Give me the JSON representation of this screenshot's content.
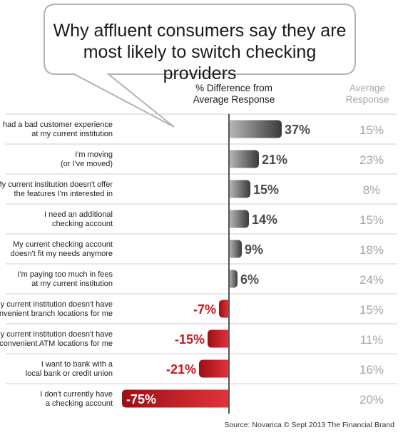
{
  "title": [
    "Why affluent consumers say they are",
    "most likely to switch checking providers"
  ],
  "column_headers": {
    "difference": [
      "% Difference from",
      "Average Response"
    ],
    "average": [
      "Average",
      "Response"
    ]
  },
  "source": "Source: Novarica © Sept 2013 The Financial Brand",
  "colors": {
    "positive": "#5f5f5f",
    "negative": "#c8181f",
    "average_text": "#a6a6a6",
    "bubble_stroke": "#b3b3b3"
  },
  "chart_data": {
    "type": "bar",
    "orientation": "horizontal",
    "categories": [
      [
        "I had a bad customer experience",
        "at my current institution"
      ],
      [
        "I'm moving",
        "(or I've moved)"
      ],
      [
        "My current institution doesn't offer",
        "the features I'm interested in"
      ],
      [
        "I need an additional",
        "checking account"
      ],
      [
        "My current checking account",
        "doesn't fit my needs anymore"
      ],
      [
        "I'm paying too much in fees",
        "at my current institution"
      ],
      [
        "My current institution doesn't have",
        "convenient branch locations for me"
      ],
      [
        "My current institution doesn't have",
        "convenient ATM locations for me"
      ],
      [
        "I want to bank with a",
        "local bank or credit union"
      ],
      [
        "I don't currently have",
        "a checking account"
      ]
    ],
    "series": [
      {
        "name": "% Difference from Average Response",
        "values": [
          37,
          21,
          15,
          14,
          9,
          6,
          -7,
          -15,
          -21,
          -75
        ],
        "labels": [
          "37%",
          "21%",
          "15%",
          "14%",
          "9%",
          "6%",
          "-7%",
          "-15%",
          "-21%",
          "-75%"
        ]
      },
      {
        "name": "Average Response",
        "values": [
          15,
          23,
          8,
          15,
          18,
          24,
          15,
          11,
          16,
          20
        ],
        "labels": [
          "15%",
          "23%",
          "8%",
          "15%",
          "18%",
          "24%",
          "15%",
          "11%",
          "16%",
          "20%"
        ]
      }
    ],
    "xlim": [
      -75,
      37
    ],
    "grid": false,
    "legend": "none"
  }
}
